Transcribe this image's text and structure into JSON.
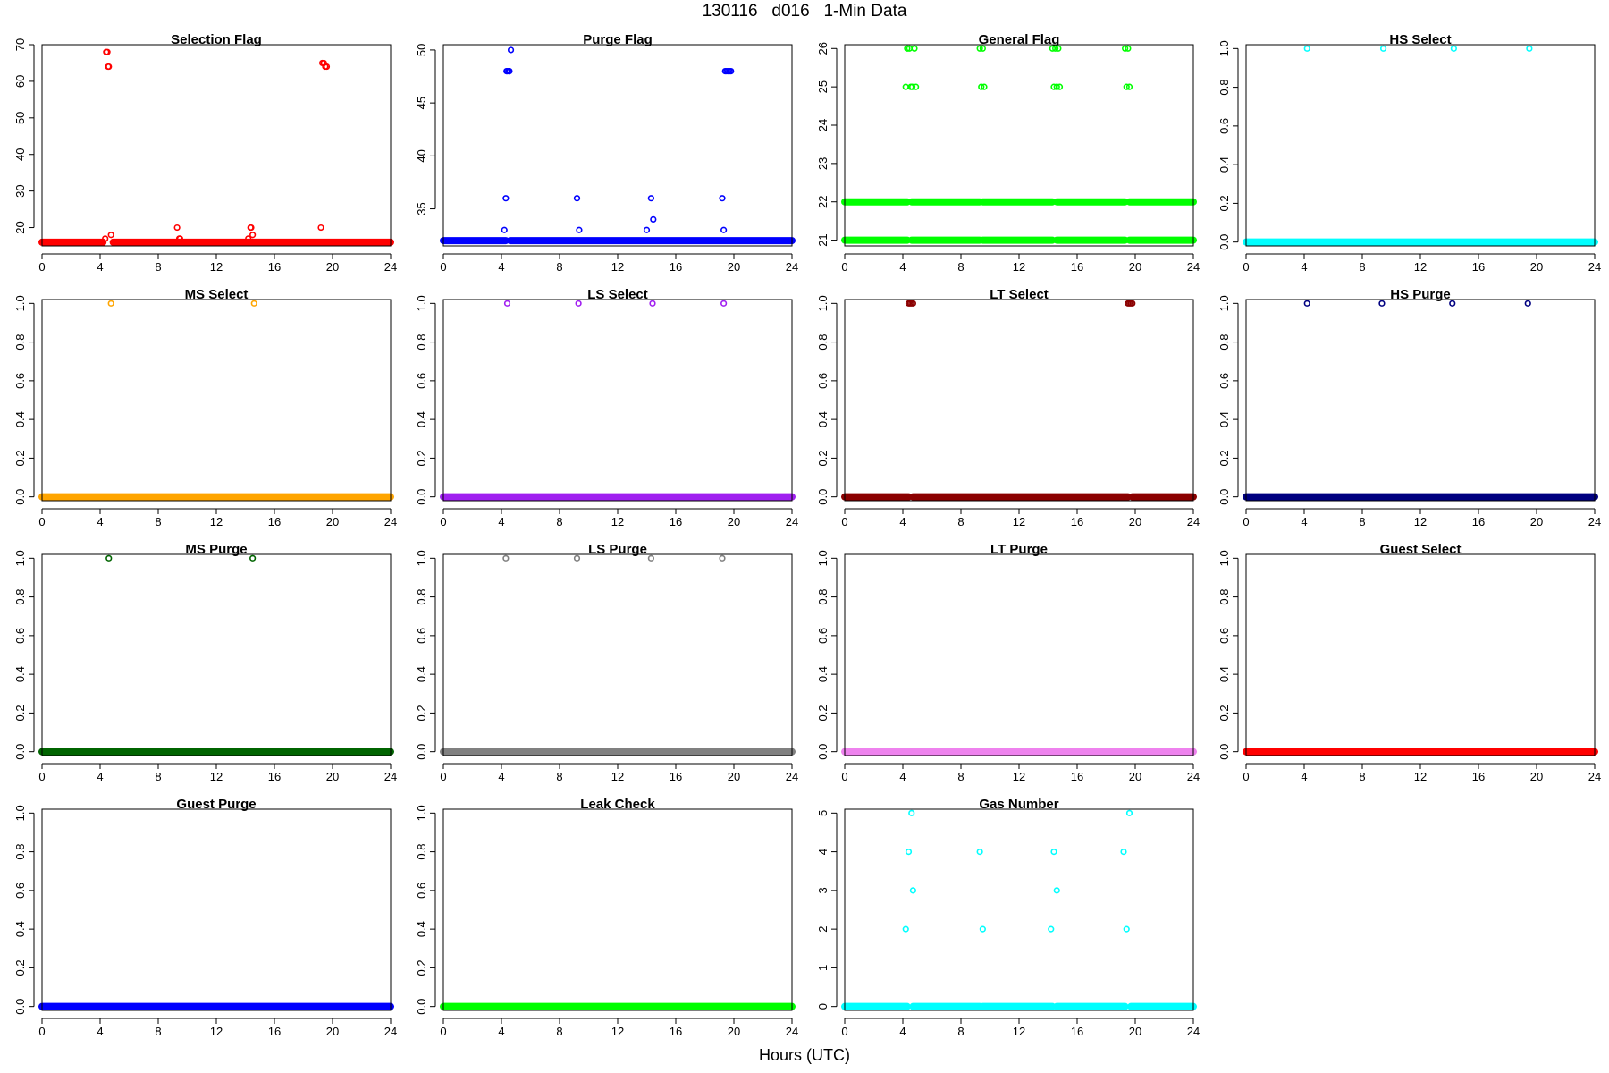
{
  "page": {
    "title": "130116   d016   1-Min Data",
    "x_axis_title": "Hours (UTC)"
  },
  "chart_data": [
    {
      "type": "scatter",
      "title": "Selection Flag",
      "color": "#ff0000",
      "xlim": [
        0,
        24
      ],
      "ylim": [
        15,
        70
      ],
      "xticks": [
        0,
        4,
        8,
        12,
        16,
        20,
        24
      ],
      "yticks": [
        20,
        30,
        40,
        50,
        60,
        70
      ],
      "baseline": 16,
      "baseline_segments": [
        [
          0,
          4.2
        ],
        [
          4.9,
          24
        ]
      ],
      "points": [
        [
          4.35,
          17
        ],
        [
          4.42,
          68
        ],
        [
          4.5,
          68
        ],
        [
          4.55,
          64
        ],
        [
          4.6,
          64
        ],
        [
          4.75,
          18
        ],
        [
          9.3,
          20
        ],
        [
          9.45,
          17
        ],
        [
          9.5,
          17
        ],
        [
          14.2,
          17
        ],
        [
          14.35,
          20
        ],
        [
          14.4,
          20
        ],
        [
          14.5,
          18
        ],
        [
          19.2,
          20
        ],
        [
          19.3,
          65
        ],
        [
          19.4,
          65
        ],
        [
          19.5,
          64
        ],
        [
          19.6,
          64
        ]
      ]
    },
    {
      "type": "scatter",
      "title": "Purge Flag",
      "color": "#0000ff",
      "xlim": [
        0,
        24
      ],
      "ylim": [
        31.5,
        50.5
      ],
      "xticks": [
        0,
        4,
        8,
        12,
        16,
        20,
        24
      ],
      "yticks": [
        35,
        40,
        45,
        50
      ],
      "baseline": 32,
      "baseline_segments": [
        [
          0,
          4.3
        ],
        [
          4.6,
          24
        ]
      ],
      "points": [
        [
          4.2,
          33
        ],
        [
          4.3,
          36
        ],
        [
          4.35,
          48
        ],
        [
          4.4,
          48
        ],
        [
          4.5,
          48
        ],
        [
          4.55,
          48
        ],
        [
          4.65,
          50
        ],
        [
          9.2,
          36
        ],
        [
          9.35,
          33
        ],
        [
          14.0,
          33
        ],
        [
          14.3,
          36
        ],
        [
          14.45,
          34
        ],
        [
          19.2,
          36
        ],
        [
          19.3,
          33
        ],
        [
          19.4,
          48
        ],
        [
          19.5,
          48
        ],
        [
          19.6,
          48
        ],
        [
          19.7,
          48
        ],
        [
          19.8,
          48
        ]
      ]
    },
    {
      "type": "scatter",
      "title": "General Flag",
      "color": "#00ff00",
      "xlim": [
        0,
        24
      ],
      "ylim": [
        20.85,
        26.1
      ],
      "xticks": [
        0,
        4,
        8,
        12,
        16,
        20,
        24
      ],
      "yticks": [
        21,
        22,
        23,
        24,
        25,
        26
      ],
      "baseline_lines": [
        21,
        22
      ],
      "baseline_segments": [
        [
          0,
          4.3
        ],
        [
          4.6,
          9.3
        ],
        [
          9.5,
          14.3
        ],
        [
          14.6,
          19.3
        ],
        [
          19.6,
          24
        ]
      ],
      "points": [
        [
          4.2,
          25
        ],
        [
          4.3,
          26
        ],
        [
          4.45,
          26
        ],
        [
          4.55,
          25
        ],
        [
          4.65,
          25
        ],
        [
          4.8,
          26
        ],
        [
          4.9,
          25
        ],
        [
          9.3,
          26
        ],
        [
          9.4,
          25
        ],
        [
          9.5,
          26
        ],
        [
          9.6,
          25
        ],
        [
          14.3,
          26
        ],
        [
          14.4,
          25
        ],
        [
          14.5,
          26
        ],
        [
          14.6,
          25
        ],
        [
          14.7,
          26
        ],
        [
          14.8,
          25
        ],
        [
          19.3,
          26
        ],
        [
          19.4,
          25
        ],
        [
          19.5,
          26
        ],
        [
          19.6,
          25
        ]
      ]
    },
    {
      "type": "scatter",
      "title": "HS Select",
      "color": "#00ffff",
      "xlim": [
        0,
        24
      ],
      "ylim": [
        -0.02,
        1.02
      ],
      "xticks": [
        0,
        4,
        8,
        12,
        16,
        20,
        24
      ],
      "yticks": [
        0.0,
        0.2,
        0.4,
        0.6,
        0.8,
        1.0
      ],
      "baseline": 0,
      "baseline_segments": [
        [
          0,
          24
        ]
      ],
      "points": [
        [
          4.2,
          1
        ],
        [
          9.45,
          1
        ],
        [
          14.3,
          1
        ],
        [
          19.5,
          1
        ]
      ]
    },
    {
      "type": "scatter",
      "title": "MS Select",
      "color": "#ffa500",
      "xlim": [
        0,
        24
      ],
      "ylim": [
        -0.02,
        1.02
      ],
      "xticks": [
        0,
        4,
        8,
        12,
        16,
        20,
        24
      ],
      "yticks": [
        0.0,
        0.2,
        0.4,
        0.6,
        0.8,
        1.0
      ],
      "baseline": 0,
      "baseline_segments": [
        [
          0,
          24
        ]
      ],
      "points": [
        [
          4.75,
          1
        ],
        [
          14.6,
          1
        ]
      ]
    },
    {
      "type": "scatter",
      "title": "LS Select",
      "color": "#a020f0",
      "xlim": [
        0,
        24
      ],
      "ylim": [
        -0.02,
        1.02
      ],
      "xticks": [
        0,
        4,
        8,
        12,
        16,
        20,
        24
      ],
      "yticks": [
        0.0,
        0.2,
        0.4,
        0.6,
        0.8,
        1.0
      ],
      "baseline": 0,
      "baseline_segments": [
        [
          0,
          24
        ]
      ],
      "points": [
        [
          4.4,
          1
        ],
        [
          9.3,
          1
        ],
        [
          14.4,
          1
        ],
        [
          19.3,
          1
        ]
      ]
    },
    {
      "type": "scatter",
      "title": "LT Select",
      "color": "#8b0000",
      "xlim": [
        0,
        24
      ],
      "ylim": [
        -0.02,
        1.02
      ],
      "xticks": [
        0,
        4,
        8,
        12,
        16,
        20,
        24
      ],
      "yticks": [
        0.0,
        0.2,
        0.4,
        0.6,
        0.8,
        1.0
      ],
      "baseline": 0,
      "baseline_segments": [
        [
          0,
          4.4
        ],
        [
          4.7,
          19.5
        ],
        [
          19.8,
          24
        ]
      ],
      "points": [
        [
          4.4,
          1
        ],
        [
          4.5,
          1
        ],
        [
          4.6,
          1
        ],
        [
          4.7,
          1
        ],
        [
          19.5,
          1
        ],
        [
          19.6,
          1
        ],
        [
          19.7,
          1
        ],
        [
          19.8,
          1
        ]
      ]
    },
    {
      "type": "scatter",
      "title": "HS Purge",
      "color": "#000080",
      "xlim": [
        0,
        24
      ],
      "ylim": [
        -0.02,
        1.02
      ],
      "xticks": [
        0,
        4,
        8,
        12,
        16,
        20,
        24
      ],
      "yticks": [
        0.0,
        0.2,
        0.4,
        0.6,
        0.8,
        1.0
      ],
      "baseline": 0,
      "baseline_segments": [
        [
          0,
          24
        ]
      ],
      "points": [
        [
          4.2,
          1
        ],
        [
          9.35,
          1
        ],
        [
          14.2,
          1
        ],
        [
          19.4,
          1
        ]
      ]
    },
    {
      "type": "scatter",
      "title": "MS Purge",
      "color": "#006400",
      "xlim": [
        0,
        24
      ],
      "ylim": [
        -0.02,
        1.02
      ],
      "xticks": [
        0,
        4,
        8,
        12,
        16,
        20,
        24
      ],
      "yticks": [
        0.0,
        0.2,
        0.4,
        0.6,
        0.8,
        1.0
      ],
      "baseline": 0,
      "baseline_segments": [
        [
          0,
          24
        ]
      ],
      "points": [
        [
          4.6,
          1
        ],
        [
          14.5,
          1
        ]
      ]
    },
    {
      "type": "scatter",
      "title": "LS Purge",
      "color": "#808080",
      "xlim": [
        0,
        24
      ],
      "ylim": [
        -0.02,
        1.02
      ],
      "xticks": [
        0,
        4,
        8,
        12,
        16,
        20,
        24
      ],
      "yticks": [
        0.0,
        0.2,
        0.4,
        0.6,
        0.8,
        1.0
      ],
      "baseline": 0,
      "baseline_segments": [
        [
          0,
          24
        ]
      ],
      "points": [
        [
          4.3,
          1
        ],
        [
          9.2,
          1
        ],
        [
          14.3,
          1
        ],
        [
          19.2,
          1
        ]
      ]
    },
    {
      "type": "scatter",
      "title": "LT Purge",
      "color": "#ee82ee",
      "xlim": [
        0,
        24
      ],
      "ylim": [
        -0.02,
        1.02
      ],
      "xticks": [
        0,
        4,
        8,
        12,
        16,
        20,
        24
      ],
      "yticks": [
        0.0,
        0.2,
        0.4,
        0.6,
        0.8,
        1.0
      ],
      "baseline": 0,
      "baseline_segments": [
        [
          0,
          24
        ]
      ],
      "points": []
    },
    {
      "type": "scatter",
      "title": "Guest Select",
      "color": "#ff0000",
      "xlim": [
        0,
        24
      ],
      "ylim": [
        -0.02,
        1.02
      ],
      "xticks": [
        0,
        4,
        8,
        12,
        16,
        20,
        24
      ],
      "yticks": [
        0.0,
        0.2,
        0.4,
        0.6,
        0.8,
        1.0
      ],
      "baseline": 0,
      "baseline_segments": [
        [
          0,
          24
        ]
      ],
      "points": []
    },
    {
      "type": "scatter",
      "title": "Guest Purge",
      "color": "#0000ff",
      "xlim": [
        0,
        24
      ],
      "ylim": [
        -0.02,
        1.02
      ],
      "xticks": [
        0,
        4,
        8,
        12,
        16,
        20,
        24
      ],
      "yticks": [
        0.0,
        0.2,
        0.4,
        0.6,
        0.8,
        1.0
      ],
      "baseline": 0,
      "baseline_segments": [
        [
          0,
          24
        ]
      ],
      "points": []
    },
    {
      "type": "scatter",
      "title": "Leak Check",
      "color": "#00ff00",
      "xlim": [
        0,
        24
      ],
      "ylim": [
        -0.02,
        1.02
      ],
      "xticks": [
        0,
        4,
        8,
        12,
        16,
        20,
        24
      ],
      "yticks": [
        0.0,
        0.2,
        0.4,
        0.6,
        0.8,
        1.0
      ],
      "baseline": 0,
      "baseline_segments": [
        [
          0,
          24
        ]
      ],
      "points": []
    },
    {
      "type": "scatter",
      "title": "Gas Number",
      "color": "#00ffff",
      "xlim": [
        0,
        24
      ],
      "ylim": [
        -0.1,
        5.1
      ],
      "xticks": [
        0,
        4,
        8,
        12,
        16,
        20,
        24
      ],
      "yticks": [
        0,
        1,
        2,
        3,
        4,
        5
      ],
      "baseline": 0,
      "baseline_segments": [
        [
          0,
          4.3
        ],
        [
          4.7,
          9.3
        ],
        [
          9.5,
          14.3
        ],
        [
          14.6,
          19.3
        ],
        [
          19.7,
          24
        ]
      ],
      "points": [
        [
          4.2,
          2
        ],
        [
          4.4,
          4
        ],
        [
          4.6,
          5
        ],
        [
          4.7,
          3
        ],
        [
          9.3,
          4
        ],
        [
          9.5,
          2
        ],
        [
          14.2,
          2
        ],
        [
          14.4,
          4
        ],
        [
          14.6,
          3
        ],
        [
          19.2,
          4
        ],
        [
          19.4,
          2
        ],
        [
          19.6,
          5
        ]
      ]
    }
  ]
}
